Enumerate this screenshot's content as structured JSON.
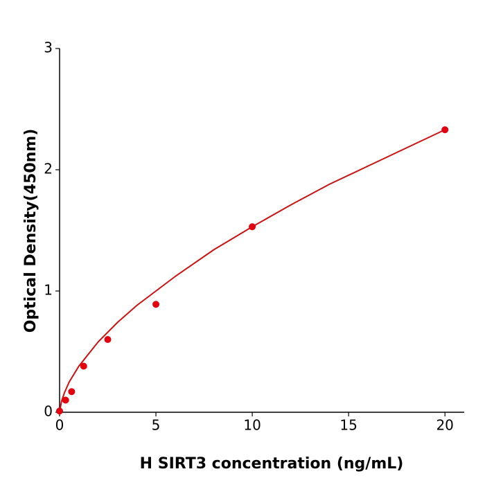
{
  "chart_data": {
    "type": "scatter",
    "x_label": "H  SIRT3 concentration (ng/mL)",
    "y_label": "Optical Density(450nm)",
    "x": [
      0,
      0.3125,
      0.625,
      1.25,
      2.5,
      5,
      10,
      20
    ],
    "values": [
      0.01,
      0.1,
      0.17,
      0.38,
      0.6,
      0.89,
      1.53,
      2.33
    ],
    "color": "#e3000f",
    "curve": {
      "color": "#cc1111",
      "x": [
        0,
        0.1,
        0.25,
        0.5,
        1,
        2,
        3,
        4,
        5,
        6,
        8,
        10,
        12,
        14,
        16,
        18,
        20
      ],
      "values": [
        0,
        0.09,
        0.16,
        0.25,
        0.38,
        0.58,
        0.74,
        0.88,
        1.0,
        1.12,
        1.34,
        1.53,
        1.71,
        1.88,
        2.03,
        2.18,
        2.33
      ]
    },
    "xlim": [
      0,
      21
    ],
    "ylim": [
      0,
      3
    ],
    "xticks": [
      0,
      5,
      10,
      15,
      20
    ],
    "yticks": [
      0,
      1,
      2,
      3
    ]
  }
}
